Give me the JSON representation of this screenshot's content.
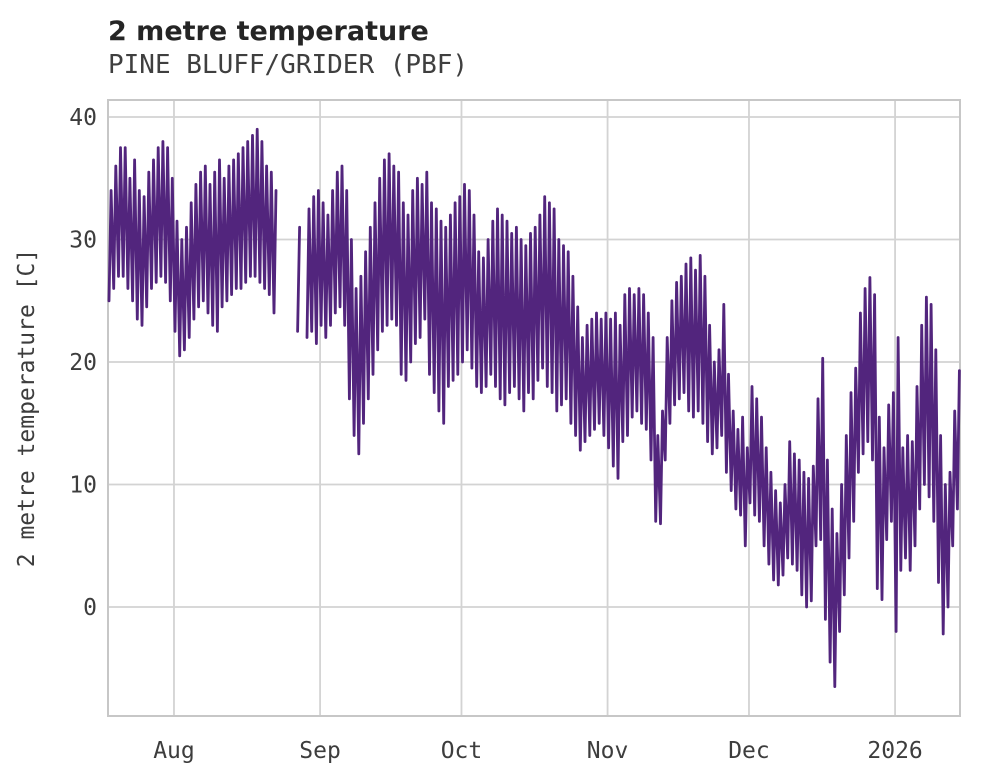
{
  "header": {
    "title": "2 metre temperature",
    "subtitle": "PINE BLUFF/GRIDER (PBF)"
  },
  "chart_data": {
    "type": "line",
    "title": "2 metre temperature",
    "subtitle": "PINE BLUFF/GRIDER (PBF)",
    "xlabel": "",
    "ylabel": "2 metre temperature [C]",
    "ylim": [
      -9,
      41.5
    ],
    "yticks": [
      0,
      10,
      20,
      30,
      40
    ],
    "x_tick_labels": [
      "Aug",
      "Sep",
      "Oct",
      "Nov",
      "Dec",
      "2026"
    ],
    "x_tick_days": [
      14,
      45,
      75,
      106,
      136,
      167
    ],
    "grid": true,
    "legend": "none",
    "line_color": "#52257d",
    "start_date": "2025-07-18",
    "end_date": "2026-01-14",
    "note": "Hourly series shown in figure; encoded here as daily max/min envelope (index 0 = 2025-07-18). null = data gap.",
    "daily": {
      "tmax": [
        34,
        36,
        37.5,
        37.5,
        35,
        36.5,
        34,
        33.5,
        35.5,
        36.5,
        37.5,
        38,
        37.5,
        35,
        31.5,
        30,
        31,
        33,
        34.5,
        35.5,
        36,
        34.5,
        35.5,
        36.5,
        35,
        36,
        36.5,
        37,
        37.5,
        38,
        38.5,
        39,
        38,
        36,
        35.5,
        34,
        null,
        null,
        null,
        null,
        31,
        null,
        32.5,
        33.5,
        34,
        33,
        32,
        34,
        35.5,
        36,
        34,
        30,
        26,
        27,
        29,
        31,
        33,
        35,
        36.5,
        37,
        36,
        35.5,
        33,
        32,
        34,
        35,
        34.5,
        35.5,
        33,
        32.5,
        31.5,
        31,
        32,
        33,
        33.5,
        34.5,
        34,
        32,
        29,
        28.5,
        30,
        31.5,
        32.5,
        32,
        31.5,
        30.5,
        31,
        30,
        29.5,
        30.5,
        31,
        32,
        33.5,
        33,
        32.5,
        30,
        29.5,
        29,
        27,
        24.5,
        22,
        23,
        23.5,
        24,
        23.5,
        24,
        23.5,
        24,
        23,
        25.5,
        26,
        25.5,
        26,
        25.5,
        24,
        22,
        14,
        16,
        22,
        25,
        26.5,
        27,
        28,
        28.5,
        27.5,
        28.7,
        27,
        23,
        20,
        21,
        24.7,
        19,
        16,
        14.5,
        15.5,
        13,
        18,
        17,
        15.5,
        13,
        11,
        9.5,
        8.5,
        10,
        13.5,
        12.5,
        12,
        11,
        10.5,
        11.5,
        17,
        20.3,
        12,
        8,
        6,
        10,
        14,
        17.5,
        19.5,
        24,
        26,
        26.9,
        25.5,
        15.5,
        13,
        16.5,
        17.5,
        22,
        13,
        14,
        13.5,
        18,
        23,
        25.3,
        24.7,
        21,
        14,
        10,
        11,
        16,
        19.3
      ],
      "tmin": [
        25,
        26,
        27,
        27,
        26,
        25,
        23.5,
        23,
        24.5,
        26,
        26.5,
        27,
        26.5,
        25,
        22.5,
        20.5,
        21,
        22,
        23.5,
        24.5,
        25,
        24,
        23,
        22.5,
        24.5,
        25,
        25.5,
        26,
        26,
        26.5,
        27,
        27,
        26.5,
        26,
        25.5,
        24,
        null,
        null,
        null,
        null,
        22.5,
        null,
        22,
        22.5,
        21.5,
        23,
        22,
        23,
        24,
        24.5,
        23,
        17,
        14,
        12.5,
        15,
        17,
        19,
        21,
        22.5,
        23,
        23.5,
        23,
        19,
        18.5,
        20,
        21.5,
        22,
        23.5,
        19,
        17.5,
        16,
        15,
        18,
        18.5,
        19,
        20,
        21,
        19.5,
        18,
        17.5,
        18,
        19,
        18,
        17,
        16.5,
        17.5,
        18,
        17,
        16,
        17.5,
        17,
        18.5,
        19.5,
        18,
        17.5,
        16,
        16.5,
        17,
        15,
        14,
        12.8,
        13.5,
        14,
        14.5,
        15,
        14,
        13,
        11.5,
        10.5,
        13.5,
        14,
        15.5,
        16,
        15,
        14.5,
        12,
        7,
        6.8,
        12,
        15,
        16.5,
        17,
        17.5,
        16,
        15.5,
        16,
        15,
        13.5,
        12.5,
        13,
        14,
        11,
        9.5,
        8,
        7.5,
        5,
        8.5,
        7.5,
        7,
        5,
        3.5,
        2.2,
        1.8,
        2.6,
        4,
        3.5,
        3,
        1,
        0,
        0.5,
        5,
        5.5,
        -1,
        -4.5,
        -6.5,
        -2,
        1,
        4,
        7,
        11,
        12.5,
        13.5,
        12,
        1.5,
        0.6,
        5.5,
        7,
        -2,
        3,
        4,
        3,
        5,
        8,
        10,
        9,
        7,
        2,
        -2.2,
        0,
        5,
        8
      ]
    }
  },
  "colors": {
    "background": "#ffffff",
    "line": "#52257d",
    "grid": "#d3d3d3",
    "plot_border": "#c7c7c7",
    "tick_text": "#3d3d3d",
    "title_text": "#252525",
    "subtitle_text": "#3f3f3f"
  }
}
